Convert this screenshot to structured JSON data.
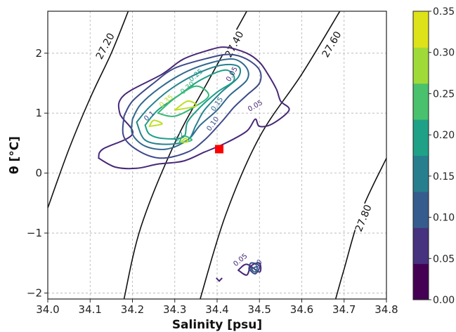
{
  "chart_data": {
    "type": "contour",
    "xlabel": "Salinity [psu]",
    "ylabel": "θ [°C]",
    "xlim": [
      34.0,
      34.8
    ],
    "ylim": [
      -2.1,
      2.7
    ],
    "xticks": [
      "34.0",
      "34.1",
      "34.2",
      "34.3",
      "34.4",
      "34.5",
      "34.6",
      "34.7",
      "34.8"
    ],
    "yticks": [
      "−2",
      "−1",
      "0",
      "1",
      "2"
    ],
    "grid": true,
    "isopycnals": [
      {
        "label": "27.20",
        "points": [
          [
            34.0,
            -0.58
          ],
          [
            34.05,
            0.4
          ],
          [
            34.1,
            1.25
          ],
          [
            34.15,
            2.0
          ],
          [
            34.19,
            2.7
          ]
        ]
      },
      {
        "label": "27.40",
        "points": [
          [
            34.18,
            -2.1
          ],
          [
            34.22,
            -0.9
          ],
          [
            34.3,
            0.5
          ],
          [
            34.38,
            1.55
          ],
          [
            34.47,
            2.7
          ]
        ]
      },
      {
        "label": "27.60",
        "points": [
          [
            34.36,
            -2.1
          ],
          [
            34.42,
            -0.7
          ],
          [
            34.5,
            0.6
          ],
          [
            34.6,
            1.65
          ],
          [
            34.69,
            2.7
          ]
        ]
      },
      {
        "label": "27.80",
        "points": [
          [
            34.68,
            -2.1
          ],
          [
            34.7,
            -1.6
          ],
          [
            34.74,
            -0.65
          ],
          [
            34.8,
            0.25
          ]
        ]
      }
    ],
    "isopycnal_label_positions": [
      {
        "label": "27.20",
        "x": 34.135,
        "y": 2.12,
        "angle": -62
      },
      {
        "label": "27.40",
        "x": 34.44,
        "y": 2.15,
        "angle": -62
      },
      {
        "label": "27.60",
        "x": 34.67,
        "y": 2.15,
        "angle": -60
      },
      {
        "label": "27.80",
        "x": 34.745,
        "y": -0.75,
        "angle": -68
      }
    ],
    "contour_levels": [
      {
        "level": 0.05,
        "color": "#482878",
        "paths": [
          [
            [
              34.12,
              0.25
            ],
            [
              34.13,
              0.4
            ],
            [
              34.2,
              0.65
            ],
            [
              34.17,
              1.0
            ],
            [
              34.18,
              1.3
            ],
            [
              34.27,
              1.65
            ],
            [
              34.32,
              1.9
            ],
            [
              34.38,
              2.05
            ],
            [
              34.42,
              2.1
            ],
            [
              34.47,
              2.0
            ],
            [
              34.5,
              1.85
            ],
            [
              34.52,
              1.65
            ],
            [
              34.54,
              1.4
            ],
            [
              34.55,
              1.2
            ],
            [
              34.57,
              1.05
            ],
            [
              34.53,
              0.82
            ],
            [
              34.5,
              0.78
            ],
            [
              34.49,
              0.9
            ],
            [
              34.47,
              0.7
            ],
            [
              34.42,
              0.5
            ],
            [
              34.37,
              0.35
            ],
            [
              34.32,
              0.2
            ],
            [
              34.26,
              0.15
            ],
            [
              34.21,
              0.08
            ],
            [
              34.16,
              0.1
            ],
            [
              34.12,
              0.25
            ]
          ],
          [
            [
              34.45,
              -1.62
            ],
            [
              34.47,
              -1.7
            ],
            [
              34.48,
              -1.55
            ],
            [
              34.5,
              -1.5
            ],
            [
              34.5,
              -1.65
            ],
            [
              34.47,
              -1.52
            ],
            [
              34.45,
              -1.62
            ]
          ]
        ]
      },
      {
        "level": 0.1,
        "color": "#3e4989",
        "paths": [
          [
            [
              34.18,
              0.95
            ],
            [
              34.2,
              1.2
            ],
            [
              34.25,
              1.5
            ],
            [
              34.3,
              1.75
            ],
            [
              34.38,
              1.92
            ],
            [
              34.43,
              1.98
            ],
            [
              34.47,
              1.9
            ],
            [
              34.5,
              1.72
            ],
            [
              34.5,
              1.5
            ],
            [
              34.47,
              1.3
            ],
            [
              34.44,
              1.1
            ],
            [
              34.41,
              0.85
            ],
            [
              34.37,
              0.55
            ],
            [
              34.33,
              0.35
            ],
            [
              34.27,
              0.25
            ],
            [
              34.22,
              0.35
            ],
            [
              34.18,
              0.6
            ],
            [
              34.18,
              0.95
            ]
          ],
          [
            [
              34.475,
              -1.6
            ],
            [
              34.49,
              -1.68
            ],
            [
              34.5,
              -1.55
            ],
            [
              34.48,
              -1.5
            ],
            [
              34.475,
              -1.6
            ]
          ]
        ]
      },
      {
        "level": 0.15,
        "color": "#31688e",
        "paths": [
          [
            [
              34.2,
              0.9
            ],
            [
              34.22,
              1.15
            ],
            [
              34.27,
              1.45
            ],
            [
              34.33,
              1.7
            ],
            [
              34.39,
              1.85
            ],
            [
              34.44,
              1.9
            ],
            [
              34.47,
              1.75
            ],
            [
              34.47,
              1.55
            ],
            [
              34.43,
              1.3
            ],
            [
              34.4,
              1.05
            ],
            [
              34.36,
              0.8
            ],
            [
              34.33,
              0.55
            ],
            [
              34.28,
              0.4
            ],
            [
              34.23,
              0.45
            ],
            [
              34.2,
              0.65
            ],
            [
              34.2,
              0.9
            ]
          ],
          [
            [
              34.48,
              -1.6
            ],
            [
              34.49,
              -1.65
            ],
            [
              34.495,
              -1.56
            ],
            [
              34.48,
              -1.6
            ]
          ]
        ]
      },
      {
        "level": 0.2,
        "color": "#26828e",
        "paths": [
          [
            [
              34.21,
              0.85
            ],
            [
              34.24,
              1.1
            ],
            [
              34.29,
              1.4
            ],
            [
              34.35,
              1.65
            ],
            [
              34.41,
              1.8
            ],
            [
              34.45,
              1.78
            ],
            [
              34.45,
              1.6
            ],
            [
              34.41,
              1.35
            ],
            [
              34.37,
              1.05
            ],
            [
              34.35,
              0.8
            ],
            [
              34.33,
              0.55
            ],
            [
              34.28,
              0.48
            ],
            [
              34.23,
              0.55
            ],
            [
              34.21,
              0.85
            ]
          ]
        ]
      },
      {
        "level": 0.25,
        "color": "#1f9e89",
        "paths": [
          [
            [
              34.23,
              0.8
            ],
            [
              34.26,
              1.05
            ],
            [
              34.31,
              1.3
            ],
            [
              34.36,
              1.55
            ],
            [
              34.42,
              1.72
            ],
            [
              34.44,
              1.55
            ],
            [
              34.4,
              1.35
            ],
            [
              34.36,
              1.1
            ],
            [
              34.33,
              0.85
            ],
            [
              34.32,
              0.6
            ],
            [
              34.27,
              0.58
            ],
            [
              34.24,
              0.65
            ],
            [
              34.23,
              0.8
            ]
          ]
        ]
      },
      {
        "level": 0.3,
        "color": "#35b779",
        "paths": [
          [
            [
              34.26,
              1.0
            ],
            [
              34.3,
              1.25
            ],
            [
              34.35,
              1.45
            ],
            [
              34.38,
              1.3
            ],
            [
              34.35,
              1.12
            ],
            [
              34.3,
              0.95
            ],
            [
              34.26,
              1.0
            ]
          ],
          [
            [
              34.31,
              0.5
            ],
            [
              34.32,
              0.62
            ],
            [
              34.34,
              0.55
            ],
            [
              34.31,
              0.5
            ]
          ]
        ]
      },
      {
        "level": 0.35,
        "color": "#bddf26",
        "paths": [
          [
            [
              34.24,
              0.78
            ],
            [
              34.25,
              0.88
            ],
            [
              34.27,
              0.82
            ],
            [
              34.24,
              0.78
            ]
          ],
          [
            [
              34.3,
              1.05
            ],
            [
              34.33,
              1.2
            ],
            [
              34.35,
              1.12
            ],
            [
              34.3,
              1.05
            ]
          ],
          [
            [
              34.315,
              0.52
            ],
            [
              34.325,
              0.58
            ],
            [
              34.33,
              0.52
            ],
            [
              34.315,
              0.52
            ]
          ]
        ]
      }
    ],
    "contour_label_positions": [
      {
        "text": "0.25",
        "x": 34.35,
        "y": 1.63,
        "color": "#1f9e89",
        "angle": -40
      },
      {
        "text": "0.30",
        "x": 34.33,
        "y": 1.42,
        "color": "#35b779",
        "angle": -40
      },
      {
        "text": "0.35",
        "x": 34.28,
        "y": 1.2,
        "color": "#bddf26",
        "angle": -40
      },
      {
        "text": "0.05",
        "x": 34.435,
        "y": 1.65,
        "color": "#482878",
        "angle": -60
      },
      {
        "text": "0.15",
        "x": 34.4,
        "y": 1.15,
        "color": "#31688e",
        "angle": -55
      },
      {
        "text": "0.10",
        "x": 34.39,
        "y": 0.82,
        "color": "#3e4989",
        "angle": -55
      },
      {
        "text": "0.05",
        "x": 34.49,
        "y": 1.12,
        "color": "#482878",
        "angle": -30
      },
      {
        "text": "0.1",
        "x": 34.24,
        "y": 0.95,
        "color": "#3e4989",
        "angle": -40
      },
      {
        "text": "0.2",
        "x": 34.31,
        "y": 0.6,
        "color": "#26828e",
        "angle": -40
      },
      {
        "text": "0.05",
        "x": 34.455,
        "y": -1.45,
        "color": "#482878",
        "angle": -40
      },
      {
        "text": "0.10",
        "x": 34.49,
        "y": -1.55,
        "color": "#3e4989",
        "angle": -40
      }
    ],
    "stray_mark": [
      [
        34.398,
        -1.75
      ],
      [
        34.405,
        -1.8
      ],
      [
        34.412,
        -1.75
      ]
    ],
    "marker": {
      "x": 34.405,
      "y": 0.4,
      "color": "#ff0000"
    },
    "colorbar": {
      "ticks": [
        "0.00",
        "0.05",
        "0.10",
        "0.15",
        "0.20",
        "0.25",
        "0.30",
        "0.35"
      ],
      "colors": [
        "#440154",
        "#46327e",
        "#365c8d",
        "#277f8e",
        "#1fa187",
        "#4ac16d",
        "#a0da39",
        "#dde318"
      ]
    }
  }
}
